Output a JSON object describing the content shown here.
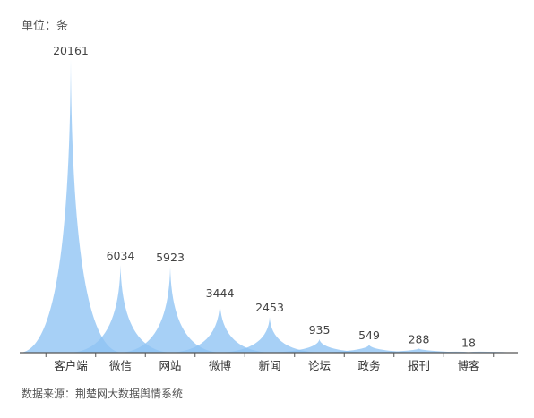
{
  "chart_data": {
    "type": "area",
    "unit_label": "单位：条",
    "source": "数据来源：荆楚网大数据舆情系统",
    "categories": [
      "客户端",
      "微信",
      "网站",
      "微博",
      "新闻",
      "论坛",
      "政务",
      "报刊",
      "博客"
    ],
    "values": [
      20161,
      6034,
      5923,
      3444,
      2453,
      935,
      549,
      288,
      18
    ],
    "ylim": [
      0,
      20161
    ],
    "grid": false,
    "legend": "none",
    "colors": {
      "fill": "#8ec3f3",
      "axis": "#555555"
    }
  }
}
